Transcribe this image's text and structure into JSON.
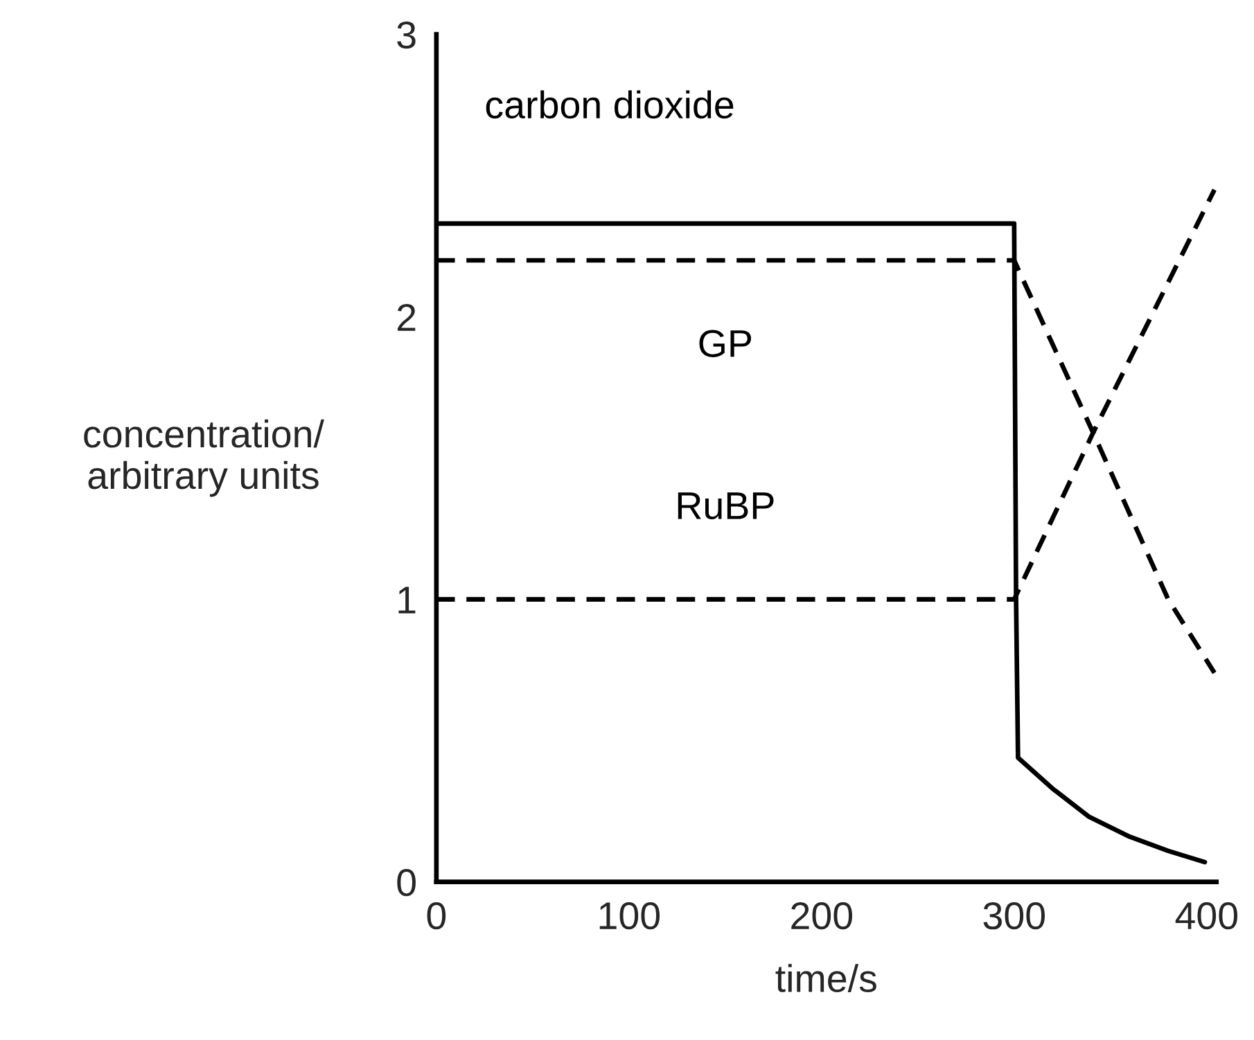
{
  "chart_data": {
    "type": "line",
    "xlabel": "time/s",
    "ylabel": "concentration/\narbitrary units",
    "xlim": [
      0,
      405
    ],
    "ylim": [
      0,
      3
    ],
    "xticks": [
      0,
      100,
      200,
      300,
      400
    ],
    "yticks": [
      0,
      1,
      2,
      3
    ],
    "grid": false,
    "legend": false,
    "series": [
      {
        "name": "carbon dioxide",
        "color": "#000000",
        "line_style": "solid",
        "x": [
          0,
          300,
          301,
          302,
          320,
          339,
          360,
          380,
          399
        ],
        "values": [
          2.33,
          2.33,
          1.0,
          0.44,
          0.33,
          0.23,
          0.16,
          0.11,
          0.07
        ]
      },
      {
        "name": "GP",
        "color": "#000000",
        "line_style": "dashed",
        "x": [
          0,
          300,
          341,
          380,
          404
        ],
        "values": [
          2.2,
          2.2,
          1.59,
          1.0,
          0.74
        ]
      },
      {
        "name": "RuBP",
        "color": "#000000",
        "line_style": "dashed",
        "x": [
          0,
          300,
          341,
          404
        ],
        "values": [
          1.0,
          1.0,
          1.59,
          2.45
        ]
      }
    ]
  }
}
